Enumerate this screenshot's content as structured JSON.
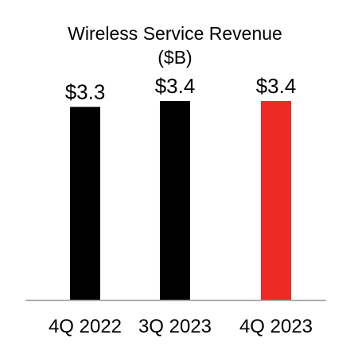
{
  "chart_data": {
    "type": "bar",
    "title": "Wireless Service Revenue",
    "subtitle": "($B)",
    "categories": [
      "4Q 2022",
      "3Q 2023",
      "4Q 2023"
    ],
    "values": [
      3.3,
      3.4,
      3.4
    ],
    "value_labels": [
      "$3.3",
      "$3.4",
      "$3.4"
    ],
    "bar_colors": [
      "#000000",
      "#000000",
      "#ee2a24"
    ],
    "axis_color": "#9a9a9a",
    "ylim": [
      0,
      3.4
    ],
    "grid": false,
    "legend": "none",
    "xlabel": "",
    "ylabel": ""
  }
}
